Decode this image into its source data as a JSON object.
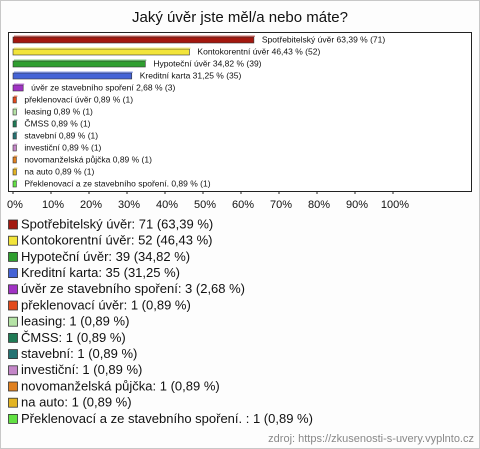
{
  "chart_data": {
    "type": "hbar",
    "title": "Jaký úvěr jste měl/a nebo máte?",
    "categories": [
      "Spotřebitelský úvěr",
      "Kontokorentní úvěr",
      "Hypoteční úvěr",
      "Kreditní karta",
      "úvěr ze stavebního spoření",
      "překlenovací úvěr",
      "leasing",
      "ČMSS",
      "stavební",
      "investiční",
      "novomanželská půjčka",
      "na auto",
      "Překlenovací a ze stavebního spoření."
    ],
    "values": [
      63.39,
      46.43,
      34.82,
      31.25,
      2.68,
      0.89,
      0.89,
      0.89,
      0.89,
      0.89,
      0.89,
      0.89,
      0.89
    ],
    "value_labels": [
      "Spotřebitelský úvěr 63,39 % (71)",
      "Kontokorentní úvěr 46,43 % (52)",
      "Hypoteční úvěr 34,82 % (39)",
      "Kreditní karta 31,25 % (35)",
      "úvěr ze stavebního spoření 2,68 % (3)",
      "překlenovací úvěr 0,89 % (1)",
      "leasing 0,89 % (1)",
      "ČMSS 0,89 % (1)",
      "stavební 0,89 % (1)",
      "investiční 0,89 % (1)",
      "novomanželská půjčka 0,89 % (1)",
      "na auto 0,89 % (1)",
      "Překlenovací a ze stavebního spoření.  0,89 % (1)"
    ],
    "legend": [
      "Spotřebitelský úvěr: 71 (63,39 %)",
      "Kontokorentní úvěr: 52 (46,43 %)",
      "Hypoteční úvěr: 39 (34,82 %)",
      "Kreditní karta: 35 (31,25 %)",
      "úvěr ze stavebního spoření: 3 (2,68 %)",
      "překlenovací úvěr: 1 (0,89 %)",
      "leasing: 1 (0,89 %)",
      "ČMSS: 1 (0,89 %)",
      "stavební: 1 (0,89 %)",
      "investiční: 1 (0,89 %)",
      "novomanželská půjčka: 1 (0,89 %)",
      "na auto: 1 (0,89 %)",
      "Překlenovací a ze stavebního spoření. : 1 (0,89 %)"
    ],
    "colors": [
      "#a3180f",
      "#f2e43a",
      "#2f9e2f",
      "#4463d6",
      "#a032c4",
      "#e24a1c",
      "#b5e3a6",
      "#1f7a55",
      "#237272",
      "#c486c8",
      "#e0801f",
      "#e3b423",
      "#62e143"
    ],
    "xlim": [
      0,
      100
    ],
    "xticks": [
      {
        "value": 0,
        "label": "0%"
      },
      {
        "value": 10,
        "label": "10%"
      },
      {
        "value": 20,
        "label": "20%"
      },
      {
        "value": 30,
        "label": "30%"
      },
      {
        "value": 40,
        "label": "40%"
      },
      {
        "value": 50,
        "label": "50%"
      },
      {
        "value": 60,
        "label": "60%"
      },
      {
        "value": 70,
        "label": "70%"
      },
      {
        "value": 80,
        "label": "80%"
      },
      {
        "value": 90,
        "label": "90%"
      },
      {
        "value": 100,
        "label": "100%"
      }
    ],
    "source": "zdroj: https://zkusenosti-s-uvery.vyplnto.cz"
  }
}
